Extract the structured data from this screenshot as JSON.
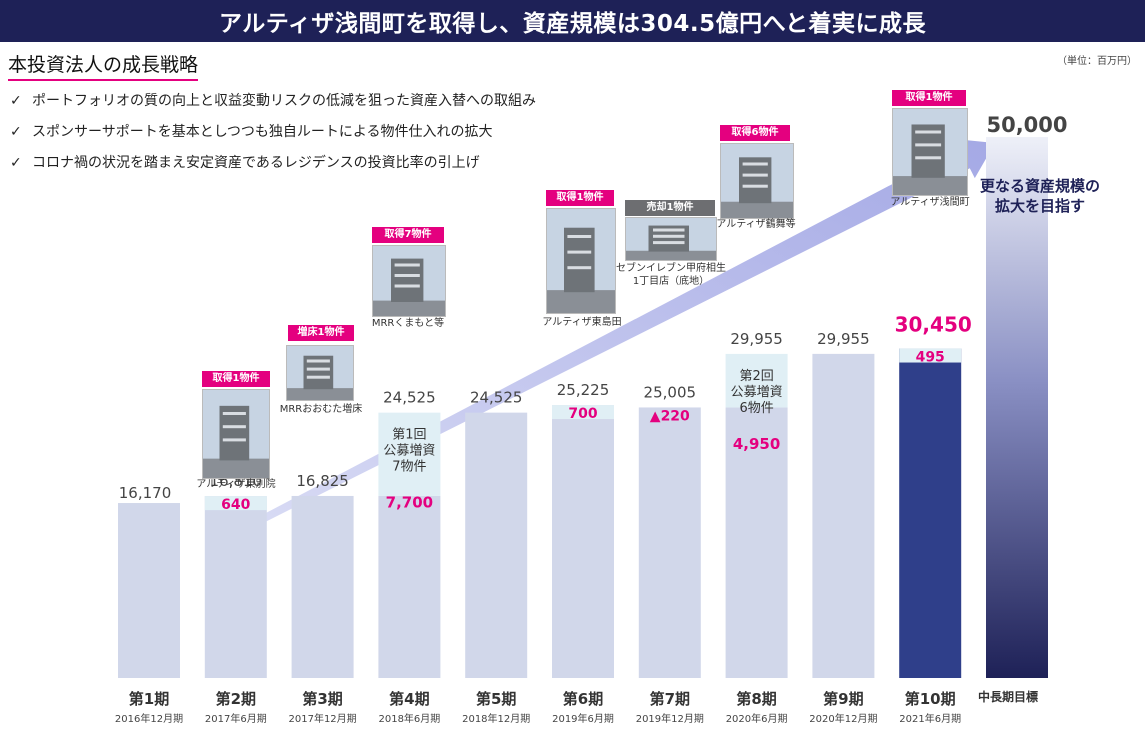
{
  "header": {
    "title": "アルティザ浅間町を取得し、資産規模は304.5億円へと着実に成長"
  },
  "section": {
    "title": "本投資法人の成長戦略",
    "unit": "（単位：百万円）"
  },
  "bullets": [
    "ポートフォリオの質の向上と収益変動リスクの低減を狙った資産入替への取組み",
    "スポンサーサポートを基本としつつも独自ルートによる物件仕入れの拡大",
    "コロナ禍の状況を踏まえ安定資産であるレジデンスの投資比率の引上げ"
  ],
  "colors": {
    "bar": "#d1d7ea",
    "bar_highlight": "#2f3f8a",
    "delta": "#e0eff5",
    "accent": "#e4007f",
    "navy": "#1e2157"
  },
  "chart_data": {
    "type": "bar",
    "categories": [
      "第1期",
      "第2期",
      "第3期",
      "第4期",
      "第5期",
      "第6期",
      "第7期",
      "第8期",
      "第9期",
      "第10期",
      "中長期目標"
    ],
    "dates": [
      "2016年12月期",
      "2017年6月期",
      "2017年12月期",
      "2018年6月期",
      "2018年12月期",
      "2019年6月期",
      "2019年12月期",
      "2020年6月期",
      "2020年12月期",
      "2021年6月期",
      ""
    ],
    "values": [
      16170,
      16810,
      16825,
      24525,
      24525,
      25225,
      25005,
      29955,
      29955,
      30450,
      50000
    ],
    "value_labels": [
      "16,170",
      "16,810",
      "16,825",
      "24,525",
      "24,525",
      "25,225",
      "25,005",
      "29,955",
      "29,955",
      "30,450",
      "50,000"
    ],
    "deltas": [
      {
        "index": 1,
        "value": 640,
        "label": "640"
      },
      {
        "index": 3,
        "value": 7700,
        "label": "7,700",
        "desc": [
          "第1回",
          "公募増資",
          "7物件"
        ]
      },
      {
        "index": 5,
        "value": 700,
        "label": "700"
      },
      {
        "index": 6,
        "value": -220,
        "label": "▲220"
      },
      {
        "index": 7,
        "value": 4950,
        "label": "4,950",
        "desc": [
          "第2回",
          "公募増資",
          "6物件"
        ]
      },
      {
        "index": 9,
        "value": 495,
        "label": "495"
      }
    ],
    "ylim": [
      0,
      50000
    ],
    "goal_text": [
      "更なる資産規模の",
      "拡大を目指す"
    ],
    "events": [
      {
        "index": 1,
        "tag": "取得1物件",
        "caption": "アルティザ東別院"
      },
      {
        "index": 2,
        "tag": "増床1物件",
        "caption": "MRRおおむた増床"
      },
      {
        "index": 3,
        "tag": "取得7物件",
        "caption": "MRRくまもと等"
      },
      {
        "index": 5,
        "tag": "取得1物件",
        "caption": "アルティザ東島田"
      },
      {
        "index": 6,
        "tag": "売却1物件",
        "caption": "セブンイレブン甲府相生\n1丁目店（底地）"
      },
      {
        "index": 7,
        "tag": "取得6物件",
        "caption": "アルティザ鶴舞等"
      },
      {
        "index": 9,
        "tag": "取得1物件",
        "caption": "アルティザ浅間町"
      }
    ]
  }
}
